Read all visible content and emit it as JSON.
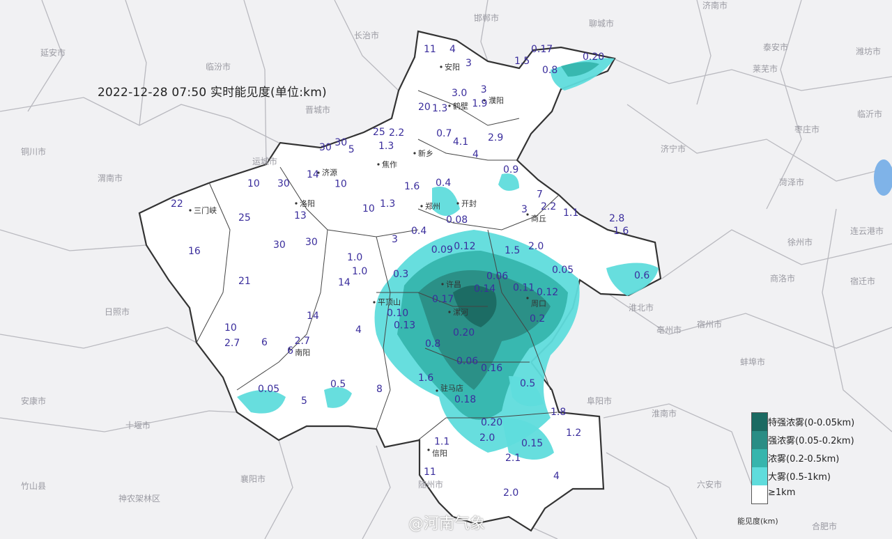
{
  "title": "2022-12-28 07:50 实时能见度(单位:km)",
  "legend": {
    "items": [
      {
        "label": "特强浓雾(0-0.05km)",
        "color": "#1b6a62"
      },
      {
        "label": "强浓雾(0.05-0.2km)",
        "color": "#2a8d85"
      },
      {
        "label": "浓雾(0.2-0.5km)",
        "color": "#36b5ad"
      },
      {
        "label": "大雾(0.5-1km)",
        "color": "#5fdcdc"
      },
      {
        "label": "≥1km",
        "color": "#ffffff"
      }
    ],
    "unit": "能见度(km)"
  },
  "watermark": "@河南气象",
  "colors": {
    "province_fill": "#ffffff",
    "background": "#f1f1f3",
    "value_text": "#3a2d9c",
    "border": "#333333"
  },
  "neighbor_cities": [
    "延安市",
    "临汾市",
    "长治市",
    "邯郸市",
    "聊城市",
    "济南市",
    "潍坊市",
    "泰安市",
    "莱芜市",
    "晋城市",
    "铜川市",
    "运城市",
    "渭南市",
    "济宁市",
    "菏泽市",
    "枣庄市",
    "临沂市",
    "日照市",
    "商洛市",
    "徐州市",
    "宿州市",
    "淮北市",
    "连云港市",
    "宿迁市",
    "亳州市",
    "蚌埠市",
    "阜阳市",
    "淮南市",
    "安康市",
    "十堰市",
    "襄阳市",
    "随州市",
    "六安市",
    "合肥市",
    "神农架林区",
    "竹山县"
  ],
  "province_cities": [
    "安阳",
    "濮阳",
    "鹤壁",
    "新乡",
    "焦作",
    "济源",
    "郑州",
    "开封",
    "商丘",
    "洛阳",
    "三门峡",
    "平顶山",
    "许昌",
    "漯河",
    "周口",
    "驻马店",
    "南阳",
    "信阳"
  ],
  "visibility_values": [
    "11",
    "4",
    "3",
    "3.0",
    "3",
    "1.9",
    "20",
    "1.3",
    "2.9",
    "25",
    "2.2",
    "30",
    "1.3",
    "0.7",
    "4.1",
    "30",
    "5",
    "4",
    "0.9",
    "7",
    "10",
    "14",
    "30",
    "10",
    "1.6",
    "0.4",
    "22",
    "25",
    "13",
    "10",
    "1.3",
    "0.08",
    "3",
    "2.2",
    "1.1",
    "2.8",
    "1.6",
    "16",
    "30",
    "30",
    "3",
    "0.4",
    "0.09",
    "0.12",
    "1.5",
    "2.0",
    "0.05",
    "0.6",
    "21",
    "1.0",
    "1.0",
    "0.3",
    "14",
    "0.14",
    "0.06",
    "0.11",
    "0.12",
    "0.17",
    "0.10",
    "0.13",
    "0.2",
    "10",
    "14",
    "4",
    "0.20",
    "0.8",
    "2.7",
    "6",
    "6",
    "2.7",
    "0.06",
    "0.16",
    "1.6",
    "0.05",
    "0.5",
    "8",
    "5",
    "0.18",
    "0.5",
    "1.8",
    "1.2",
    "0.20",
    "2.0",
    "0.15",
    "1.1",
    "2.1",
    "11",
    "4",
    "2.0",
    "0.17",
    "1.5",
    "0.8",
    "0.20"
  ]
}
